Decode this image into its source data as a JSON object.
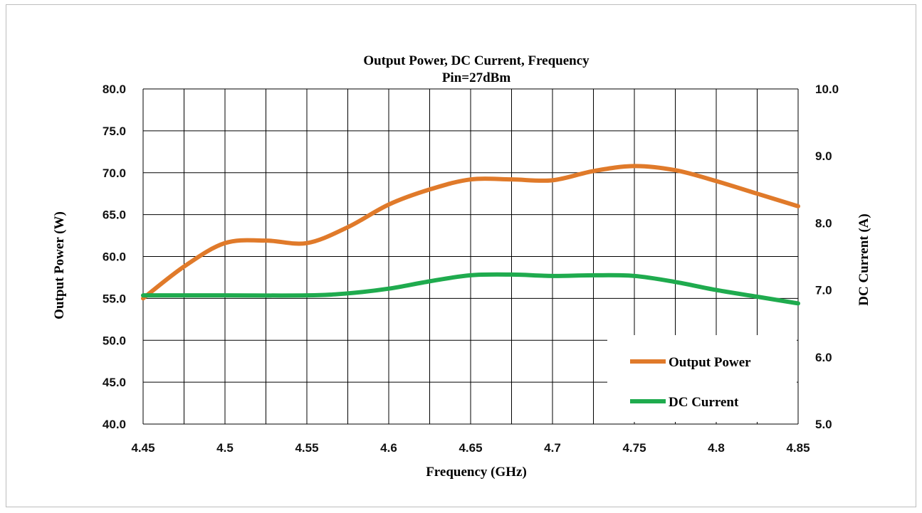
{
  "chart_data": {
    "type": "line",
    "title": "Output Power, DC  Current,  Frequency",
    "subtitle": "Pin=27dBm",
    "xlabel": "Frequency (GHz)",
    "ylabel": "Output  Power (W)",
    "y2label": "DC Current  (A)",
    "xlim": [
      4.45,
      4.85
    ],
    "ylim": [
      40,
      80
    ],
    "y2lim": [
      5,
      10
    ],
    "x_ticks": [
      "4.45",
      "4.5",
      "4.55",
      "4.6",
      "4.65",
      "4.7",
      "4.75",
      "4.8",
      "4.85"
    ],
    "y_ticks": [
      "40.0",
      "45.0",
      "50.0",
      "55.0",
      "60.0",
      "65.0",
      "70.0",
      "75.0",
      "80.0"
    ],
    "y2_ticks": [
      "5.0",
      "6.0",
      "7.0",
      "8.0",
      "9.0",
      "10.0"
    ],
    "grid": true,
    "legend_position": "bottom-right",
    "series": [
      {
        "name": "Output Power",
        "color": "#e07a2a",
        "axis": "left",
        "x": [
          4.45,
          4.475,
          4.5,
          4.525,
          4.55,
          4.575,
          4.6,
          4.625,
          4.65,
          4.675,
          4.7,
          4.725,
          4.75,
          4.775,
          4.8,
          4.825,
          4.85
        ],
        "values": [
          55.0,
          58.8,
          61.6,
          61.9,
          61.6,
          63.5,
          66.2,
          68.0,
          69.2,
          69.2,
          69.1,
          70.2,
          70.8,
          70.3,
          69.0,
          67.5,
          66.0
        ]
      },
      {
        "name": "DC Current",
        "color": "#1fab4e",
        "axis": "right",
        "x": [
          4.45,
          4.5,
          4.55,
          4.575,
          4.6,
          4.625,
          4.65,
          4.675,
          4.7,
          4.725,
          4.75,
          4.775,
          4.8,
          4.825,
          4.85
        ],
        "values": [
          6.92,
          6.92,
          6.92,
          6.95,
          7.02,
          7.13,
          7.22,
          7.23,
          7.21,
          7.22,
          7.21,
          7.12,
          7.0,
          6.9,
          6.8
        ]
      }
    ]
  }
}
